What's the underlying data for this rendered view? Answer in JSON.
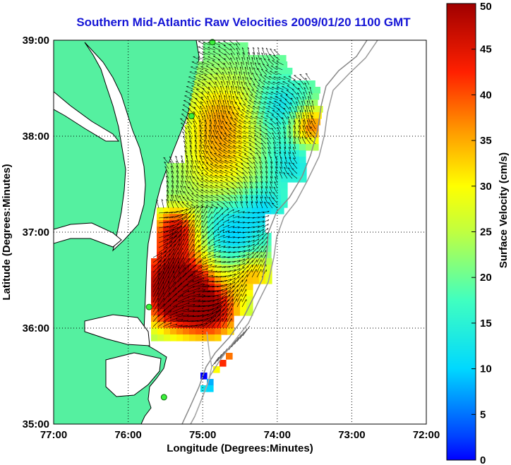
{
  "title": "Southern Mid-Atlantic Raw Velocities 2009/01/20 1100 GMT",
  "x_axis": {
    "label": "Longitude (Degrees:Minutes)",
    "ticks": [
      "77:00",
      "76:00",
      "75:00",
      "74:00",
      "73:00",
      "72:00"
    ]
  },
  "y_axis": {
    "label": "Latitude (Degrees:Minutes)",
    "ticks": [
      "39:00",
      "38:00",
      "37:00",
      "36:00",
      "35:00"
    ]
  },
  "colorbar": {
    "label": "Surface Velocity (cm/s)",
    "ticks": [
      "50",
      "45",
      "40",
      "35",
      "30",
      "25",
      "20",
      "15",
      "10",
      "5",
      "0"
    ],
    "min": 0,
    "max": 50
  },
  "chart_data": {
    "type": "heatmap",
    "title": "Southern Mid-Atlantic Raw Velocities 2009/01/20 1100 GMT",
    "xlabel": "Longitude (Degrees:Minutes)",
    "ylabel": "Latitude (Degrees:Minutes)",
    "xlim": [
      -77,
      -72
    ],
    "ylim": [
      35,
      39
    ],
    "grid": true,
    "colorbar_label": "Surface Velocity (cm/s)",
    "colorbar_range": [
      0,
      50
    ],
    "land_color": "#55f0a0",
    "colormap": "jet",
    "hf_radar_stations": [
      {
        "lon": -74.87,
        "lat": 38.98
      },
      {
        "lon": -75.15,
        "lat": 38.21
      },
      {
        "lon": -75.72,
        "lat": 36.22
      },
      {
        "lon": -75.52,
        "lat": 35.28
      }
    ]
  }
}
